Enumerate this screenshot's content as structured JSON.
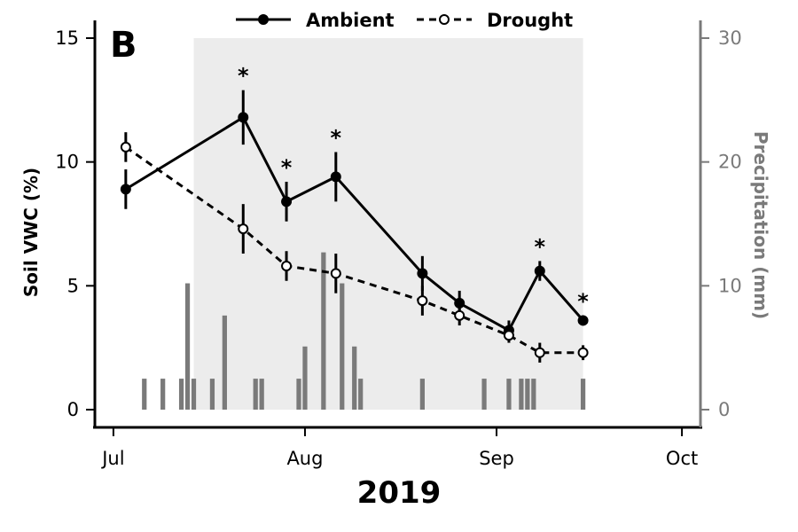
{
  "panel_label": "B",
  "legend": {
    "ambient": "Ambient",
    "drought": "Drought"
  },
  "chart_data": {
    "type": "line",
    "xlabel": "2019",
    "ylabel": "Soil VWC (%)",
    "y2label": "Precipitation (mm)",
    "x_ticks": [
      {
        "date": "2019-07-01",
        "label": "Jul"
      },
      {
        "date": "2019-08-01",
        "label": "Aug"
      },
      {
        "date": "2019-09-01",
        "label": "Sep"
      },
      {
        "date": "2019-10-01",
        "label": "Oct"
      }
    ],
    "xlim": [
      "2019-06-28",
      "2019-10-04"
    ],
    "ylim": [
      0,
      15
    ],
    "y2lim": [
      0,
      30
    ],
    "y_ticks": [
      0,
      5,
      10,
      15
    ],
    "y2_ticks": [
      0,
      10,
      20,
      30
    ],
    "shaded_period": [
      "2019-07-14",
      "2019-09-15"
    ],
    "series": [
      {
        "name": "Ambient",
        "color": "#000000",
        "linestyle": "solid",
        "marker": "filled-circle",
        "points": [
          {
            "date": "2019-07-03",
            "y": 8.9,
            "err": 0.8
          },
          {
            "date": "2019-07-22",
            "y": 11.8,
            "err": 1.1
          },
          {
            "date": "2019-07-29",
            "y": 8.4,
            "err": 0.8
          },
          {
            "date": "2019-08-06",
            "y": 9.4,
            "err": 1.0
          },
          {
            "date": "2019-08-20",
            "y": 5.5,
            "err": 0.7
          },
          {
            "date": "2019-08-26",
            "y": 4.3,
            "err": 0.5
          },
          {
            "date": "2019-09-03",
            "y": 3.2,
            "err": 0.4
          },
          {
            "date": "2019-09-08",
            "y": 5.6,
            "err": 0.4
          },
          {
            "date": "2019-09-15",
            "y": 3.6,
            "err": 0.2
          }
        ]
      },
      {
        "name": "Drought",
        "color": "#000000",
        "linestyle": "dashed",
        "marker": "open-circle",
        "points": [
          {
            "date": "2019-07-03",
            "y": 10.6,
            "err": 0.6
          },
          {
            "date": "2019-07-22",
            "y": 7.3,
            "err": 1.0
          },
          {
            "date": "2019-07-29",
            "y": 5.8,
            "err": 0.6
          },
          {
            "date": "2019-08-06",
            "y": 5.5,
            "err": 0.8
          },
          {
            "date": "2019-08-20",
            "y": 4.4,
            "err": 0.6
          },
          {
            "date": "2019-08-26",
            "y": 3.8,
            "err": 0.4
          },
          {
            "date": "2019-09-03",
            "y": 3.0,
            "err": 0.3
          },
          {
            "date": "2019-09-08",
            "y": 2.3,
            "err": 0.4
          },
          {
            "date": "2019-09-15",
            "y": 2.3,
            "err": 0.3
          }
        ]
      }
    ],
    "significance": [
      {
        "date": "2019-07-22",
        "label": "*"
      },
      {
        "date": "2019-07-29",
        "label": "*"
      },
      {
        "date": "2019-08-06",
        "label": "*"
      },
      {
        "date": "2019-09-08",
        "label": "*"
      },
      {
        "date": "2019-09-15",
        "label": "*"
      }
    ],
    "precipitation": {
      "color": "#7a7a7a",
      "axis": "right",
      "bars": [
        {
          "date": "2019-07-06",
          "mm": 2.5
        },
        {
          "date": "2019-07-09",
          "mm": 2.5
        },
        {
          "date": "2019-07-12",
          "mm": 2.5
        },
        {
          "date": "2019-07-13",
          "mm": 10.2
        },
        {
          "date": "2019-07-14",
          "mm": 2.5
        },
        {
          "date": "2019-07-17",
          "mm": 2.5
        },
        {
          "date": "2019-07-19",
          "mm": 7.6
        },
        {
          "date": "2019-07-24",
          "mm": 2.5
        },
        {
          "date": "2019-07-25",
          "mm": 2.5
        },
        {
          "date": "2019-07-31",
          "mm": 2.5
        },
        {
          "date": "2019-08-01",
          "mm": 5.1
        },
        {
          "date": "2019-08-04",
          "mm": 12.7
        },
        {
          "date": "2019-08-07",
          "mm": 10.2
        },
        {
          "date": "2019-08-09",
          "mm": 5.1
        },
        {
          "date": "2019-08-10",
          "mm": 2.5
        },
        {
          "date": "2019-08-20",
          "mm": 2.5
        },
        {
          "date": "2019-08-30",
          "mm": 2.5
        },
        {
          "date": "2019-09-03",
          "mm": 2.5
        },
        {
          "date": "2019-09-05",
          "mm": 2.5
        },
        {
          "date": "2019-09-06",
          "mm": 2.5
        },
        {
          "date": "2019-09-07",
          "mm": 2.5
        },
        {
          "date": "2019-09-15",
          "mm": 2.5
        }
      ]
    }
  }
}
